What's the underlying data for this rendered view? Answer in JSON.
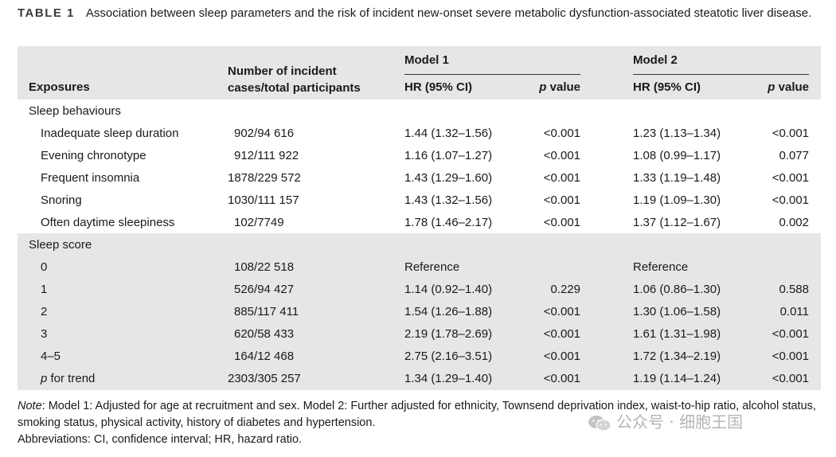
{
  "caption": {
    "label": "TABLE 1",
    "text": "Association between sleep parameters and the risk of incident new-onset severe metabolic dysfunction-associated steatotic liver disease."
  },
  "header": {
    "exposures": "Exposures",
    "cases": "Number of incident cases/total participants",
    "model1": "Model 1",
    "model2": "Model 2",
    "hr": "HR (95% CI)",
    "p_value_italic": "p",
    "p_value_rest": " value"
  },
  "sections": [
    {
      "title": "Sleep behaviours",
      "rows": [
        {
          "exposure": "Inadequate sleep duration",
          "cases": "902/94 616",
          "m1_hr": "1.44 (1.32–1.56)",
          "m1_p": "<0.001",
          "m2_hr": "1.23 (1.13–1.34)",
          "m2_p": "<0.001"
        },
        {
          "exposure": "Evening chronotype",
          "cases": "912/111 922",
          "m1_hr": "1.16 (1.07–1.27)",
          "m1_p": "<0.001",
          "m2_hr": "1.08 (0.99–1.17)",
          "m2_p": "0.077"
        },
        {
          "exposure": "Frequent insomnia",
          "cases": "1878/229 572",
          "m1_hr": "1.43 (1.29–1.60)",
          "m1_p": "<0.001",
          "m2_hr": "1.33 (1.19–1.48)",
          "m2_p": "<0.001"
        },
        {
          "exposure": "Snoring",
          "cases": "1030/111 157",
          "m1_hr": "1.43 (1.32–1.56)",
          "m1_p": "<0.001",
          "m2_hr": "1.19 (1.09–1.30)",
          "m2_p": "<0.001"
        },
        {
          "exposure": "Often daytime sleepiness",
          "cases": "102/7749",
          "m1_hr": "1.78 (1.46–2.17)",
          "m1_p": "<0.001",
          "m2_hr": "1.37 (1.12–1.67)",
          "m2_p": "0.002"
        }
      ]
    },
    {
      "title": "Sleep score",
      "rows": [
        {
          "exposure": "0",
          "cases": "108/22 518",
          "m1_hr": "Reference",
          "m1_p": "",
          "m2_hr": "Reference",
          "m2_p": ""
        },
        {
          "exposure": "1",
          "cases": "526/94 427",
          "m1_hr": "1.14 (0.92–1.40)",
          "m1_p": "0.229",
          "m2_hr": "1.06 (0.86–1.30)",
          "m2_p": "0.588"
        },
        {
          "exposure": "2",
          "cases": "885/117 411",
          "m1_hr": "1.54 (1.26–1.88)",
          "m1_p": "<0.001",
          "m2_hr": "1.30 (1.06–1.58)",
          "m2_p": "0.011"
        },
        {
          "exposure": "3",
          "cases": "620/58 433",
          "m1_hr": "2.19 (1.78–2.69)",
          "m1_p": "<0.001",
          "m2_hr": "1.61 (1.31–1.98)",
          "m2_p": "<0.001"
        },
        {
          "exposure": "4–5",
          "cases": "164/12 468",
          "m1_hr": "2.75 (2.16–3.51)",
          "m1_p": "<0.001",
          "m2_hr": "1.72 (1.34–2.19)",
          "m2_p": "<0.001"
        },
        {
          "exposure_italic": "p",
          "exposure_rest": " for trend",
          "cases": "2303/305 257",
          "m1_hr": "1.34 (1.29–1.40)",
          "m1_p": "<0.001",
          "m2_hr": "1.19 (1.14–1.24)",
          "m2_p": "<0.001"
        }
      ]
    }
  ],
  "notes": {
    "note_label": "Note",
    "note_text": ": Model 1: Adjusted for age at recruitment and sex. Model 2: Further adjusted for ethnicity, Townsend deprivation index, waist-to-hip ratio, alcohol status, smoking status, physical activity, history of diabetes and hypertension.",
    "abbreviations": "Abbreviations: CI, confidence interval; HR, hazard ratio."
  },
  "watermark": "公众号 · 细胞王国",
  "colors": {
    "band": "#e6e6e6",
    "text": "#1a1a1a",
    "watermark": "#b5b5b5"
  }
}
